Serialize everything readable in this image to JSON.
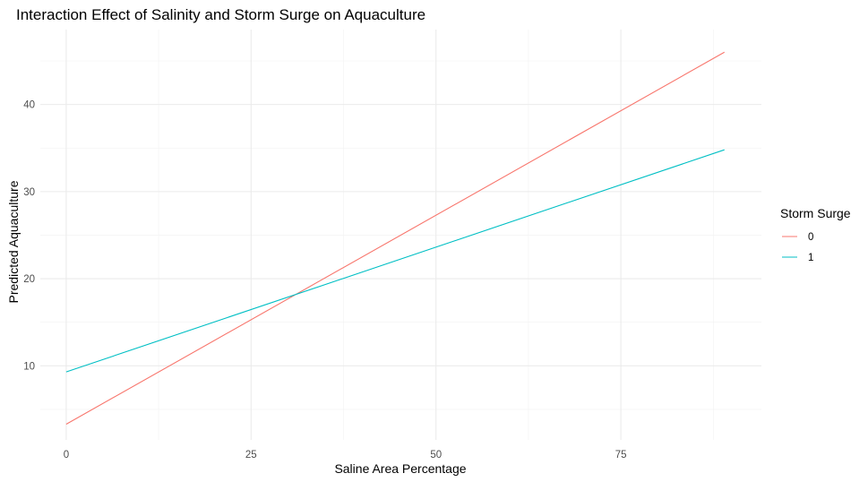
{
  "chart_data": {
    "type": "line",
    "title": "Interaction Effect of Salinity and Storm Surge on Aquaculture",
    "xlabel": "Saline Area Percentage",
    "ylabel": "Predicted Aquaculture",
    "xlim": [
      -3.5,
      94
    ],
    "ylim": [
      1.5,
      48.6
    ],
    "x_ticks": [
      0,
      25,
      50,
      75
    ],
    "x_tick_labels": [
      "0",
      "25",
      "50",
      "75"
    ],
    "y_ticks": [
      10,
      20,
      30,
      40
    ],
    "y_tick_labels": [
      "10",
      "20",
      "30",
      "40"
    ],
    "grid": true,
    "legend": {
      "title": "Storm Surge",
      "position": "right"
    },
    "series": [
      {
        "name": "0",
        "color": "#F8766D",
        "x": [
          0,
          89
        ],
        "y": [
          3.3,
          46.0
        ]
      },
      {
        "name": "1",
        "color": "#00BFC4",
        "x": [
          0,
          89
        ],
        "y": [
          9.3,
          34.8
        ]
      }
    ]
  }
}
